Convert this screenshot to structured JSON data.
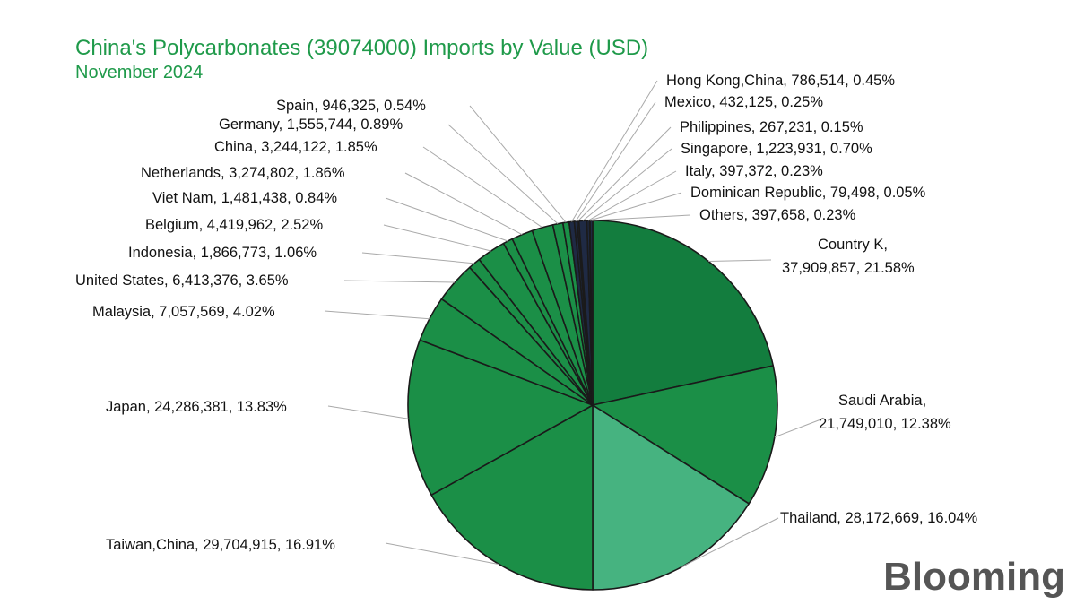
{
  "header": {
    "title": "China's Polycarbonates (39074000) Imports by Value (USD)",
    "subtitle": "November 2024"
  },
  "brand": {
    "watermark": "Blooming",
    "logo": "Blooming"
  },
  "colors": {
    "dark_green": "#137d3e",
    "mid_green": "#1b8f47",
    "light_green": "#46b380",
    "navy": "#1f2a44",
    "title_green": "#1f9a4a"
  },
  "chart_data": {
    "type": "pie",
    "title": "China's Polycarbonates (39074000) Imports by Value (USD)",
    "subtitle": "November 2024",
    "slices": [
      {
        "label": "Country K, 37,909,857, 21.58%",
        "name": "Country K",
        "value": 37909857,
        "percent": 21.58
      },
      {
        "label": "Saudi Arabia, 21,749,010, 12.38%",
        "name": "Saudi Arabia",
        "value": 21749010,
        "percent": 12.38
      },
      {
        "label": "Thailand, 28,172,669, 16.04%",
        "name": "Thailand",
        "value": 28172669,
        "percent": 16.04
      },
      {
        "label": "Taiwan,China, 29,704,915, 16.91%",
        "name": "Taiwan,China",
        "value": 29704915,
        "percent": 16.91
      },
      {
        "label": "Japan, 24,286,381, 13.83%",
        "name": "Japan",
        "value": 24286381,
        "percent": 13.83
      },
      {
        "label": "Malaysia, 7,057,569, 4.02%",
        "name": "Malaysia",
        "value": 7057569,
        "percent": 4.02
      },
      {
        "label": "United States, 6,413,376, 3.65%",
        "name": "United States",
        "value": 6413376,
        "percent": 3.65
      },
      {
        "label": "Indonesia, 1,866,773, 1.06%",
        "name": "Indonesia",
        "value": 1866773,
        "percent": 1.06
      },
      {
        "label": "Belgium, 4,419,962, 2.52%",
        "name": "Belgium",
        "value": 4419962,
        "percent": 2.52
      },
      {
        "label": "Viet Nam, 1,481,438, 0.84%",
        "name": "Viet Nam",
        "value": 1481438,
        "percent": 0.84
      },
      {
        "label": "Netherlands, 3,274,802, 1.86%",
        "name": "Netherlands",
        "value": 3274802,
        "percent": 1.86
      },
      {
        "label": "China, 3,244,122, 1.85%",
        "name": "China",
        "value": 3244122,
        "percent": 1.85
      },
      {
        "label": "Germany, 1,555,744, 0.89%",
        "name": "Germany",
        "value": 1555744,
        "percent": 0.89
      },
      {
        "label": "Spain, 946,325, 0.54%",
        "name": "Spain",
        "value": 946325,
        "percent": 0.54
      },
      {
        "label": "Hong Kong,China, 786,514, 0.45%",
        "name": "Hong Kong,China",
        "value": 786514,
        "percent": 0.45
      },
      {
        "label": "Mexico, 432,125, 0.25%",
        "name": "Mexico",
        "value": 432125,
        "percent": 0.25
      },
      {
        "label": "Philippines, 267,231, 0.15%",
        "name": "Philippines",
        "value": 267231,
        "percent": 0.15
      },
      {
        "label": "Singapore, 1,223,931, 0.70%",
        "name": "Singapore",
        "value": 1223931,
        "percent": 0.7
      },
      {
        "label": "Italy, 397,372, 0.23%",
        "name": "Italy",
        "value": 397372,
        "percent": 0.23
      },
      {
        "label": "Dominican Republic, 79,498, 0.05%",
        "name": "Dominican Republic",
        "value": 79498,
        "percent": 0.05
      },
      {
        "label": "Others, 397,658, 0.23%",
        "name": "Others",
        "value": 397658,
        "percent": 0.23
      }
    ]
  }
}
